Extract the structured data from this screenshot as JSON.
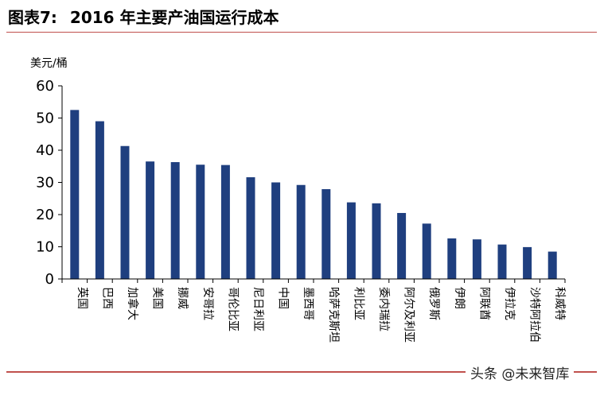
{
  "figure": {
    "label": "图表7:",
    "title": "2016 年主要产油国运行成本"
  },
  "watermark": "头条 @未来智库",
  "colors": {
    "bar": "#1f3f7f",
    "rule": "#c0504d",
    "axis": "#000000"
  },
  "chart_data": {
    "type": "bar",
    "title": "2016 年主要产油国运行成本",
    "ylabel": "美元/桶",
    "xlabel": "",
    "ylim": [
      0,
      60
    ],
    "yticks": [
      0,
      10,
      20,
      30,
      40,
      50,
      60
    ],
    "grid": false,
    "categories": [
      "英国",
      "巴西",
      "加拿大",
      "美国",
      "挪威",
      "安哥拉",
      "哥伦比亚",
      "尼日利亚",
      "中国",
      "墨西哥",
      "哈萨克斯坦",
      "利比亚",
      "委内瑞拉",
      "阿尔及利亚",
      "俄罗斯",
      "伊朗",
      "阿联酋",
      "伊拉克",
      "沙特阿拉伯",
      "科威特"
    ],
    "values": [
      52.5,
      49,
      41.3,
      36.5,
      36.3,
      35.5,
      35.4,
      31.6,
      30,
      29.2,
      27.9,
      23.8,
      23.5,
      20.5,
      17.2,
      12.6,
      12.3,
      10.7,
      9.9,
      8.5
    ]
  }
}
